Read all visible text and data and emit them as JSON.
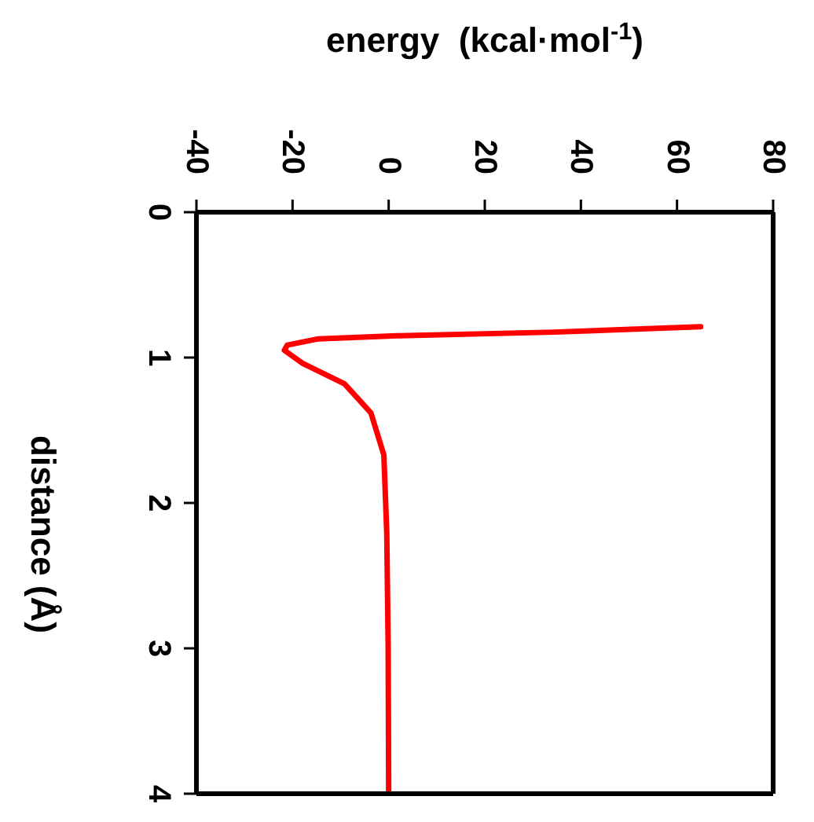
{
  "chart_data": {
    "type": "line",
    "xlabel": "energy  (kcal·mol$^{-1}$)",
    "ylabel": "distance (Å)",
    "xlim": [
      -40,
      80
    ],
    "xticks": [
      -40,
      -20,
      0,
      20,
      40,
      60,
      80
    ],
    "ylim": [
      4,
      0
    ],
    "yticks": [
      0,
      1,
      2,
      3,
      4
    ],
    "series": [
      {
        "color": "#ff0000",
        "x": [
          64.9,
          34.4,
          1.7,
          -14.6,
          -21.1,
          -21.7,
          -17.9,
          -9.2,
          -3.7,
          -1.0,
          -0.4,
          -0.1,
          0
        ],
        "values": [
          0.788,
          0.825,
          0.85,
          0.871,
          0.914,
          0.95,
          1.04,
          1.18,
          1.38,
          1.67,
          2.2,
          3.0,
          4.0
        ]
      }
    ],
    "marker": "none",
    "line_style": "solid"
  }
}
